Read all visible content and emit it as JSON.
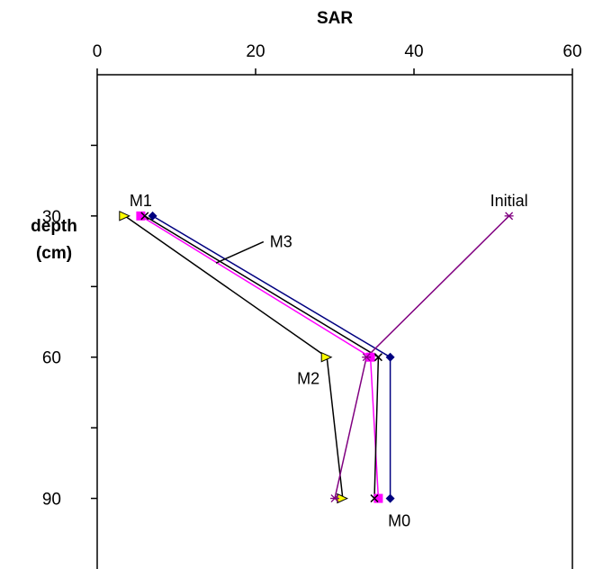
{
  "chart_data": {
    "type": "line",
    "xlabel": "SAR",
    "ylabel_line1": "depth",
    "ylabel_line2": "(cm)",
    "xlim": [
      0,
      60
    ],
    "ylim": [
      0,
      105
    ],
    "x_axis_position": "top",
    "y_axis_inverted": true,
    "grid": false,
    "xticks": [
      0,
      20,
      40,
      60
    ],
    "yticks_labeled": [
      30,
      60,
      90
    ],
    "yticks_minor": [
      15,
      45,
      75
    ],
    "series": [
      {
        "name": "M0",
        "color": "#000080",
        "marker": "diamond",
        "points": [
          [
            7,
            30
          ],
          [
            37,
            60
          ],
          [
            37,
            90
          ]
        ]
      },
      {
        "name": "M1",
        "color": "#ff00ff",
        "marker": "square",
        "points": [
          [
            5.5,
            30
          ],
          [
            34.5,
            60
          ],
          [
            35.5,
            90
          ]
        ]
      },
      {
        "name": "M2",
        "color": "#000000",
        "marker": "triangle",
        "points": [
          [
            3.5,
            30
          ],
          [
            29,
            60
          ],
          [
            31,
            90
          ]
        ]
      },
      {
        "name": "M3",
        "color": "#000000",
        "marker": "x",
        "points": [
          [
            6,
            30
          ],
          [
            35.5,
            60
          ],
          [
            35,
            90
          ]
        ]
      },
      {
        "name": "Initial",
        "color": "#800080",
        "marker": "star",
        "points": [
          [
            52,
            30
          ],
          [
            34,
            60
          ],
          [
            30,
            90
          ]
        ]
      }
    ],
    "annotations": [
      {
        "text": "M1",
        "x": 5.5,
        "y": 30,
        "anchor": "above"
      },
      {
        "text": "M3",
        "leader_from": [
          15,
          40
        ],
        "leader_to": [
          21,
          35.5
        ]
      },
      {
        "text": "Initial",
        "x": 52,
        "y": 30,
        "anchor": "above"
      },
      {
        "text": "M2",
        "x": 29,
        "y": 60,
        "anchor": "below-left"
      },
      {
        "text": "M0",
        "x": 37,
        "y": 90,
        "anchor": "below"
      }
    ]
  }
}
